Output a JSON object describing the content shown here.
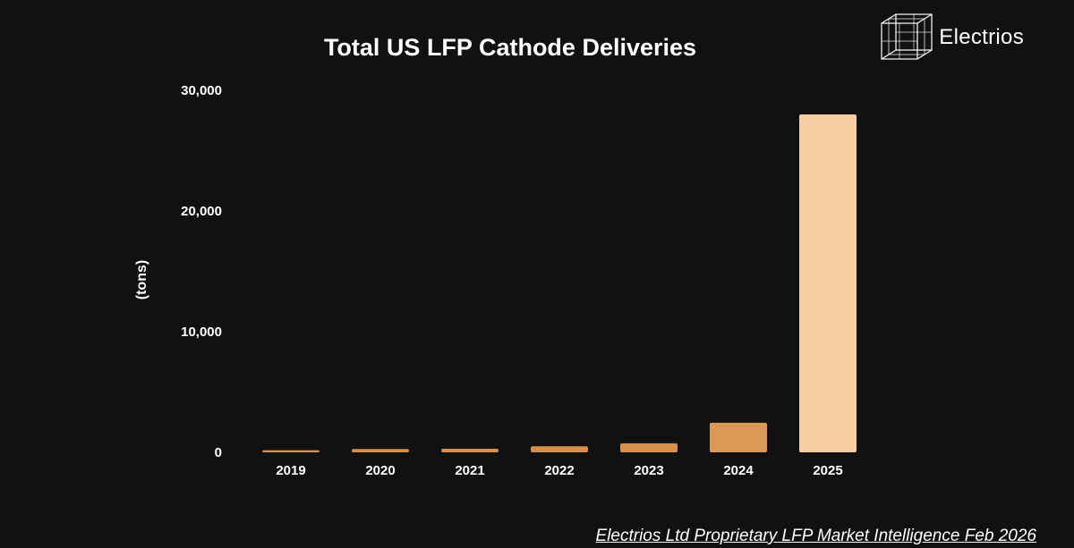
{
  "brand": {
    "name": "Electrios"
  },
  "footer": {
    "text": "Electrios Ltd Proprietary LFP Market Intelligence Feb 2026"
  },
  "chart_data": {
    "type": "bar",
    "title": "Total US LFP Cathode Deliveries",
    "xlabel": "",
    "ylabel": "(tons)",
    "categories": [
      "2019",
      "2020",
      "2021",
      "2022",
      "2023",
      "2024",
      "2025"
    ],
    "values": [
      180,
      280,
      300,
      500,
      750,
      2450,
      28000
    ],
    "ylim": [
      0,
      30000
    ],
    "yticks": [
      0,
      10000,
      20000,
      30000
    ],
    "ytick_labels": [
      "0",
      "10,000",
      "20,000",
      "30,000"
    ],
    "grid": false,
    "legend": "none",
    "colors": [
      "#d89048",
      "#d89048",
      "#d89048",
      "#d89048",
      "#d89048",
      "#dc9955",
      "#f5cfa2"
    ]
  }
}
